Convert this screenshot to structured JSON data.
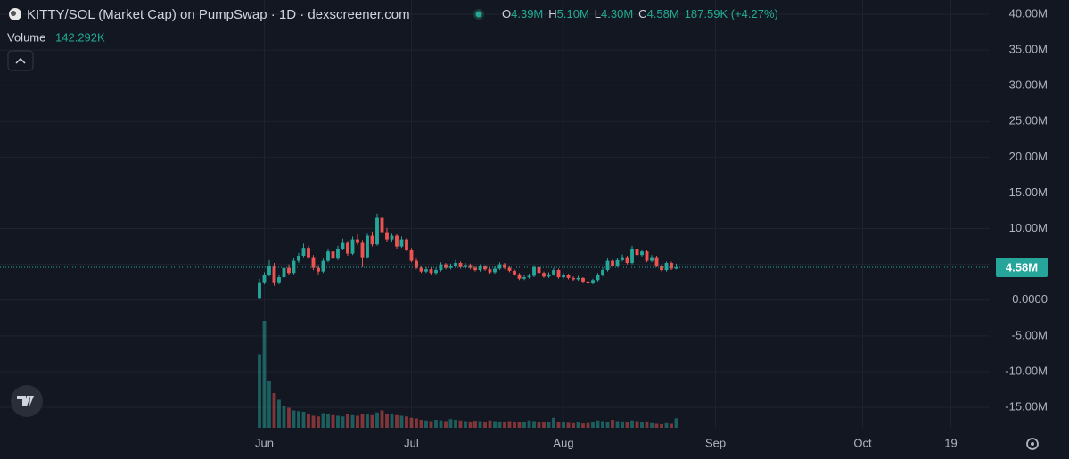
{
  "chart_data": {
    "type": "candlestick",
    "title": "KITTY/SOL (Market Cap) on PumpSwap · 1D · dexscreener.com",
    "ohlc_legend": [
      {
        "key": "O",
        "value": "4.39M"
      },
      {
        "key": "H",
        "value": "5.10M"
      },
      {
        "key": "L",
        "value": "4.30M"
      },
      {
        "key": "C",
        "value": "4.58M"
      }
    ],
    "change": "187.59K (+4.27%)",
    "volume_title": "Volume",
    "volume_label": "142.292K",
    "up_color": "#26a69a",
    "down_color": "#ef5350",
    "grid": true,
    "xlim": [
      -52.9,
      148.9
    ],
    "xticks": [
      {
        "value": 1,
        "label": "Jun"
      },
      {
        "value": 31,
        "label": "Jul"
      },
      {
        "value": 62,
        "label": "Aug"
      },
      {
        "value": 93,
        "label": "Sep"
      },
      {
        "value": 123,
        "label": "Oct"
      },
      {
        "value": 141,
        "label": "19"
      }
    ],
    "ylim": [
      -17.87,
      42.0
    ],
    "yticks": [
      {
        "value": 40,
        "label": "40.00M"
      },
      {
        "value": 35,
        "label": "35.00M"
      },
      {
        "value": 30,
        "label": "30.00M"
      },
      {
        "value": 25,
        "label": "25.00M"
      },
      {
        "value": 20,
        "label": "20.00M"
      },
      {
        "value": 15,
        "label": "15.00M"
      },
      {
        "value": 10,
        "label": "10.00M"
      },
      {
        "value": 5,
        "label": "5.00M"
      },
      {
        "value": 0,
        "label": "0.0000"
      },
      {
        "value": -5,
        "label": "-5.00M"
      },
      {
        "value": -10,
        "label": "-10.00M"
      },
      {
        "value": -15,
        "label": "-15.00M"
      }
    ],
    "last_price": {
      "value": 4.58,
      "label": "4.58M"
    },
    "candles": [
      [
        0.3,
        3.0,
        0.1,
        2.5
      ],
      [
        2.5,
        3.9,
        2.2,
        3.5
      ],
      [
        3.5,
        5.6,
        3.3,
        4.8
      ],
      [
        4.8,
        5.2,
        2.0,
        2.5
      ],
      [
        2.5,
        3.6,
        2.2,
        3.2
      ],
      [
        3.2,
        4.9,
        3.0,
        4.5
      ],
      [
        4.5,
        5.0,
        3.5,
        3.8
      ],
      [
        3.8,
        5.9,
        3.6,
        5.5
      ],
      [
        5.5,
        6.6,
        5.2,
        6.2
      ],
      [
        6.2,
        7.9,
        6.0,
        7.3
      ],
      [
        7.3,
        7.6,
        5.8,
        6.0
      ],
      [
        6.0,
        6.3,
        4.2,
        4.5
      ],
      [
        4.5,
        4.9,
        3.6,
        4.0
      ],
      [
        4.0,
        5.8,
        3.8,
        5.5
      ],
      [
        5.5,
        7.2,
        5.3,
        6.8
      ],
      [
        6.8,
        7.1,
        5.5,
        5.8
      ],
      [
        5.8,
        7.6,
        5.6,
        7.2
      ],
      [
        7.2,
        8.6,
        7.0,
        8.0
      ],
      [
        8.0,
        8.3,
        6.2,
        6.5
      ],
      [
        6.5,
        8.9,
        6.3,
        8.5
      ],
      [
        8.5,
        9.2,
        7.7,
        8.0
      ],
      [
        8.0,
        8.4,
        4.6,
        6.0
      ],
      [
        6.0,
        9.4,
        5.8,
        9.0
      ],
      [
        9.0,
        9.6,
        7.5,
        7.8
      ],
      [
        7.8,
        12.1,
        7.6,
        11.5
      ],
      [
        11.5,
        12.0,
        9.2,
        9.5
      ],
      [
        9.5,
        10.1,
        8.2,
        8.5
      ],
      [
        8.5,
        9.4,
        8.2,
        9.0
      ],
      [
        9.0,
        9.3,
        7.2,
        7.5
      ],
      [
        7.5,
        8.9,
        7.3,
        8.5
      ],
      [
        8.5,
        8.7,
        6.8,
        7.0
      ],
      [
        7.0,
        7.3,
        5.3,
        5.5
      ],
      [
        5.5,
        5.8,
        4.3,
        4.5
      ],
      [
        4.5,
        4.8,
        3.8,
        4.0
      ],
      [
        4.0,
        4.6,
        3.8,
        4.3
      ],
      [
        4.3,
        4.5,
        3.6,
        3.8
      ],
      [
        3.8,
        4.5,
        3.6,
        4.2
      ],
      [
        4.2,
        5.3,
        4.0,
        5.0
      ],
      [
        5.0,
        5.2,
        4.3,
        4.5
      ],
      [
        4.5,
        5.1,
        4.3,
        4.8
      ],
      [
        4.8,
        5.6,
        4.6,
        5.2
      ],
      [
        5.2,
        5.4,
        4.4,
        4.6
      ],
      [
        4.6,
        5.2,
        4.4,
        4.9
      ],
      [
        4.9,
        5.1,
        4.3,
        4.5
      ],
      [
        4.5,
        4.7,
        4.0,
        4.2
      ],
      [
        4.2,
        5.0,
        4.0,
        4.7
      ],
      [
        4.7,
        4.9,
        4.1,
        4.3
      ],
      [
        4.3,
        4.5,
        3.7,
        3.9
      ],
      [
        3.9,
        4.7,
        3.7,
        4.4
      ],
      [
        4.4,
        5.3,
        4.2,
        5.0
      ],
      [
        5.0,
        5.2,
        4.3,
        4.5
      ],
      [
        4.5,
        4.7,
        3.9,
        4.1
      ],
      [
        4.1,
        4.3,
        3.4,
        3.6
      ],
      [
        3.6,
        3.8,
        2.8,
        3.0
      ],
      [
        3.0,
        3.5,
        2.8,
        3.2
      ],
      [
        3.2,
        3.7,
        3.0,
        3.4
      ],
      [
        3.4,
        4.9,
        3.2,
        4.6
      ],
      [
        4.6,
        4.8,
        3.6,
        3.8
      ],
      [
        3.8,
        4.0,
        3.1,
        3.3
      ],
      [
        3.3,
        3.9,
        3.1,
        3.6
      ],
      [
        3.6,
        4.5,
        3.4,
        4.2
      ],
      [
        4.2,
        4.4,
        3.0,
        3.2
      ],
      [
        3.2,
        3.8,
        3.0,
        3.5
      ],
      [
        3.5,
        3.7,
        2.9,
        3.1
      ],
      [
        3.1,
        3.3,
        2.7,
        2.9
      ],
      [
        2.9,
        3.4,
        2.7,
        3.1
      ],
      [
        3.1,
        3.2,
        2.4,
        2.6
      ],
      [
        2.6,
        2.8,
        2.1,
        2.4
      ],
      [
        2.4,
        3.0,
        2.2,
        2.8
      ],
      [
        2.8,
        3.8,
        2.6,
        3.5
      ],
      [
        3.5,
        4.5,
        3.3,
        4.2
      ],
      [
        4.2,
        5.8,
        4.0,
        5.5
      ],
      [
        5.5,
        5.7,
        4.6,
        4.8
      ],
      [
        4.8,
        5.9,
        4.6,
        5.6
      ],
      [
        5.6,
        6.4,
        5.4,
        6.0
      ],
      [
        6.0,
        6.2,
        5.0,
        5.2
      ],
      [
        5.2,
        7.6,
        5.0,
        7.2
      ],
      [
        7.2,
        7.5,
        6.1,
        6.3
      ],
      [
        6.3,
        7.1,
        6.1,
        6.8
      ],
      [
        6.8,
        7.0,
        5.3,
        5.5
      ],
      [
        5.5,
        6.3,
        5.3,
        6.0
      ],
      [
        6.0,
        6.2,
        4.6,
        4.8
      ],
      [
        4.8,
        5.0,
        4.0,
        4.2
      ],
      [
        4.2,
        5.4,
        4.0,
        5.2
      ],
      [
        5.2,
        5.4,
        4.2,
        4.4
      ],
      [
        4.39,
        5.1,
        4.3,
        4.58
      ]
    ],
    "volumes": [
      1100,
      1600,
      700,
      520,
      420,
      330,
      300,
      260,
      250,
      240,
      200,
      180,
      170,
      220,
      200,
      190,
      180,
      170,
      200,
      190,
      180,
      210,
      200,
      190,
      230,
      260,
      210,
      200,
      190,
      180,
      170,
      150,
      140,
      120,
      110,
      100,
      120,
      110,
      100,
      130,
      120,
      110,
      100,
      95,
      105,
      100,
      90,
      110,
      100,
      95,
      90,
      100,
      90,
      85,
      80,
      110,
      100,
      90,
      80,
      85,
      150,
      90,
      80,
      75,
      70,
      80,
      65,
      70,
      90,
      110,
      100,
      90,
      120,
      100,
      95,
      90,
      110,
      100,
      80,
      95,
      70,
      60,
      55,
      70,
      60,
      142.292
    ]
  }
}
